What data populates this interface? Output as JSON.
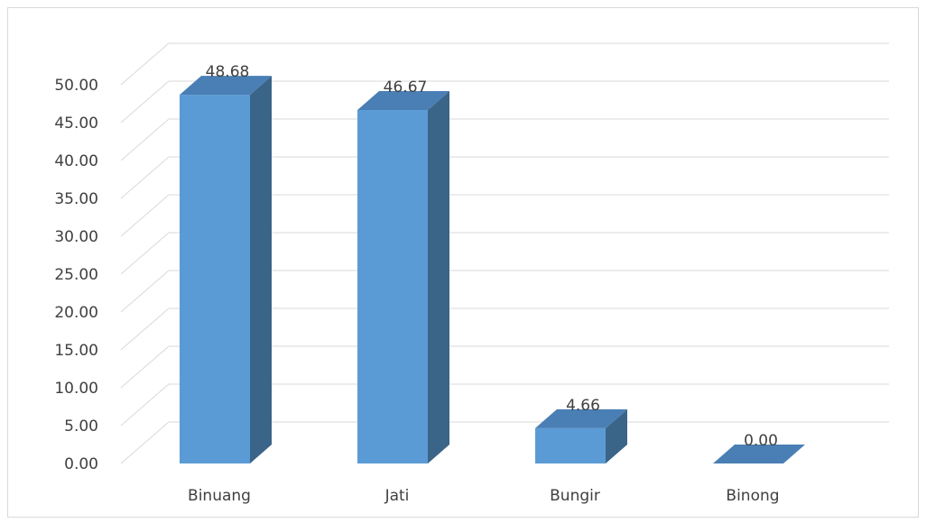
{
  "chart_data": {
    "type": "bar",
    "style": "3d-column",
    "categories": [
      "Binuang",
      "Jati",
      "Bungir",
      "Binong"
    ],
    "values": [
      48.68,
      46.67,
      4.66,
      0.0
    ],
    "data_labels": [
      "48.68",
      "46.67",
      "4.66",
      "0.00"
    ],
    "title": "",
    "xlabel": "",
    "ylabel": "",
    "ylim": [
      0,
      50
    ],
    "yticks": [
      "0.00",
      "5.00",
      "10.00",
      "15.00",
      "20.00",
      "25.00",
      "30.00",
      "35.00",
      "40.00",
      "45.00",
      "50.00"
    ],
    "grid": true,
    "legend": "none",
    "colors": {
      "bar_front": "#5b9bd5",
      "bar_side": "#3b6489",
      "bar_top": "#4a7fb5",
      "grid": "#d9d9d9",
      "text": "#404040"
    }
  }
}
